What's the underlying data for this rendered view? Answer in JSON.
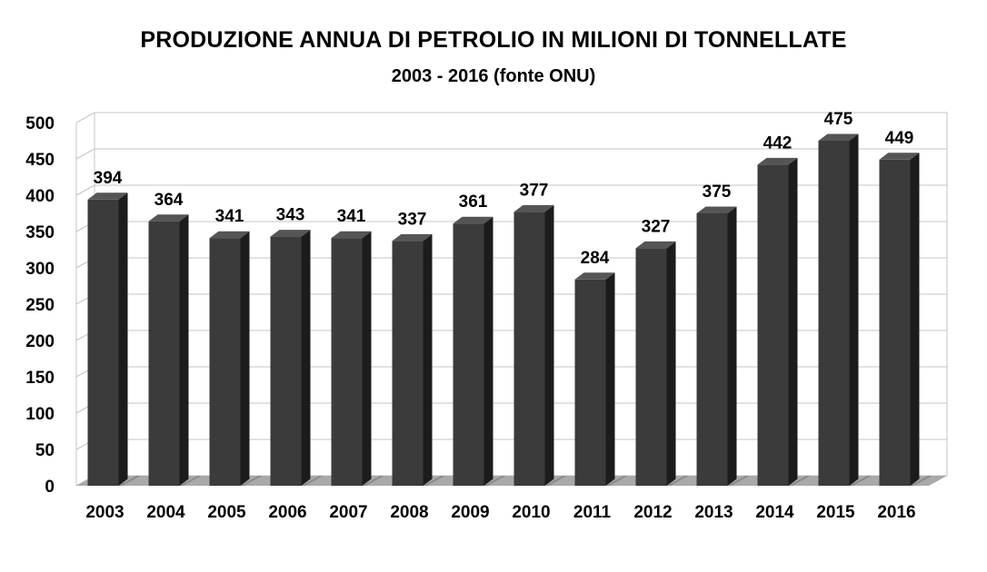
{
  "chart_data": {
    "type": "bar",
    "title": "PRODUZIONE ANNUA DI PETROLIO IN MILIONI DI TONNELLATE",
    "subtitle": "2003 - 2016 (fonte ONU)",
    "xlabel": "",
    "ylabel": "",
    "categories": [
      "2003",
      "2004",
      "2005",
      "2006",
      "2007",
      "2008",
      "2009",
      "2010",
      "2011",
      "2012",
      "2013",
      "2014",
      "2015",
      "2016"
    ],
    "values": [
      394,
      364,
      341,
      343,
      341,
      337,
      361,
      377,
      284,
      327,
      375,
      442,
      475,
      449
    ],
    "data_labels": [
      "394",
      "364",
      "341",
      "343",
      "341",
      "337",
      "361",
      "377",
      "284",
      "327",
      "375",
      "442",
      "475",
      "449"
    ],
    "ylim": [
      0,
      500
    ],
    "yticks": [
      0,
      50,
      100,
      150,
      200,
      250,
      300,
      350,
      400,
      450,
      500
    ],
    "ytick_labels": [
      "0",
      "50",
      "100",
      "150",
      "200",
      "250",
      "300",
      "350",
      "400",
      "450",
      "500"
    ],
    "grid": true,
    "legend": "none",
    "style": "3d",
    "colors": {
      "bar_front": "#3b3b3b",
      "bar_side": "#1c1c1c",
      "bar_top": "#555555",
      "grid": "#c4c4c4",
      "floor": "#a9a9a9"
    }
  }
}
